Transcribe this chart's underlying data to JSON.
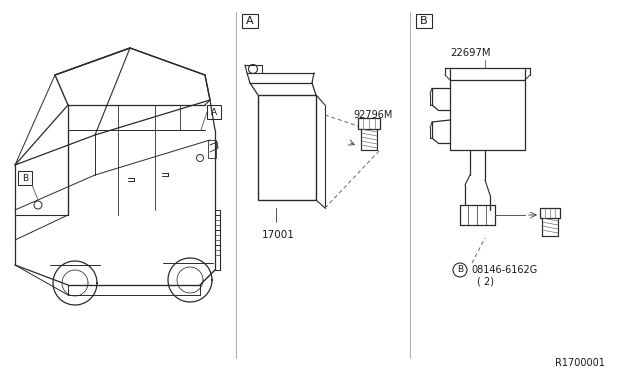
{
  "bg_color": "#ffffff",
  "line_color": "#2a2a2a",
  "text_color": "#1a1a1a",
  "part_number_A_main": "17001",
  "part_number_A_bolt": "92796M",
  "part_number_B_main": "22697M",
  "part_number_B_bolt": "08146-6162G",
  "part_number_B_qty": "( 2)",
  "diagram_ref": "R1700001",
  "label_A": "A",
  "label_B": "B"
}
